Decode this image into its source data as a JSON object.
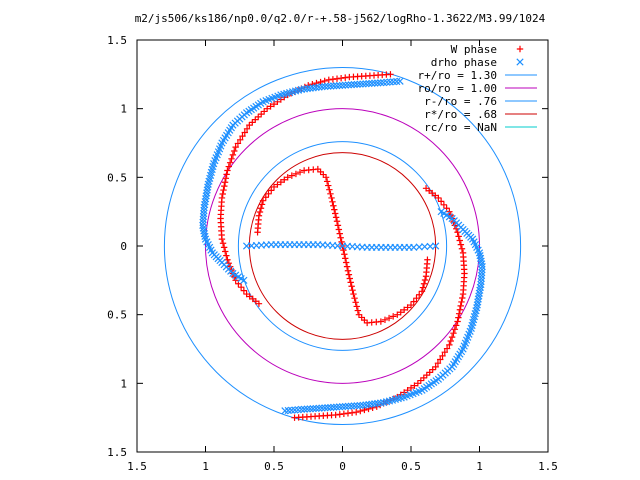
{
  "chart_data": {
    "type": "scatter",
    "title": "m2/js506/ks186/np0.0/q2.0/r-+.58-j562/logRho-1.3622/M3.99/1024",
    "xlabel": "",
    "ylabel": "",
    "xlim": [
      -1.5,
      1.5
    ],
    "ylim": [
      -1.5,
      1.5
    ],
    "grid": false,
    "legend_position": "top-right",
    "x_ticks": [
      {
        "value": -1.5,
        "label": "1.5"
      },
      {
        "value": -1.0,
        "label": "1"
      },
      {
        "value": -0.5,
        "label": "0.5"
      },
      {
        "value": 0.0,
        "label": "0"
      },
      {
        "value": 0.5,
        "label": "0.5"
      },
      {
        "value": 1.0,
        "label": "1"
      },
      {
        "value": 1.5,
        "label": "1.5"
      }
    ],
    "y_ticks": [
      {
        "value": -1.5,
        "label": "1.5"
      },
      {
        "value": -1.0,
        "label": "1"
      },
      {
        "value": -0.5,
        "label": "0.5"
      },
      {
        "value": 0.0,
        "label": "0"
      },
      {
        "value": 0.5,
        "label": "0.5"
      },
      {
        "value": 1.0,
        "label": "1"
      },
      {
        "value": 1.5,
        "label": "1.5"
      }
    ],
    "legend": [
      {
        "label": "W phase",
        "color": "#ff0000",
        "marker": "plus"
      },
      {
        "label": "drho phase",
        "color": "#1e90ff",
        "marker": "cross"
      },
      {
        "label": "r+/ro = 1.30",
        "color": "#1e90ff",
        "marker": "line"
      },
      {
        "label": "ro/ro = 1.00",
        "color": "#bb00bb",
        "marker": "line"
      },
      {
        "label": "r-/ro = .76",
        "color": "#1e90ff",
        "marker": "line"
      },
      {
        "label": "r*/ro = .68",
        "color": "#cc0000",
        "marker": "line"
      },
      {
        "label": "rc/ro = NaN",
        "color": "#00cccc",
        "marker": "line"
      }
    ],
    "circles": [
      {
        "name": "r+/ro",
        "radius": 1.3,
        "color": "#1e90ff"
      },
      {
        "name": "ro/ro",
        "radius": 1.0,
        "color": "#bb00bb"
      },
      {
        "name": "r-/ro",
        "radius": 0.76,
        "color": "#1e90ff"
      },
      {
        "name": "r*/ro",
        "radius": 0.68,
        "color": "#cc0000"
      }
    ],
    "series": [
      {
        "name": "W phase",
        "color": "#ff0000",
        "marker": "plus",
        "curves": [
          {
            "points": [
              [
                -0.62,
                0.1
              ],
              [
                -0.61,
                0.22
              ],
              [
                -0.58,
                0.33
              ],
              [
                -0.5,
                0.43
              ],
              [
                -0.4,
                0.5
              ],
              [
                -0.28,
                0.55
              ],
              [
                -0.18,
                0.56
              ],
              [
                -0.12,
                0.5
              ],
              [
                -0.08,
                0.35
              ],
              [
                -0.04,
                0.18
              ],
              [
                0.0,
                0.0
              ],
              [
                0.04,
                -0.18
              ],
              [
                0.08,
                -0.35
              ],
              [
                0.12,
                -0.5
              ],
              [
                0.18,
                -0.56
              ],
              [
                0.28,
                -0.55
              ],
              [
                0.4,
                -0.5
              ],
              [
                0.5,
                -0.43
              ],
              [
                0.58,
                -0.33
              ],
              [
                0.61,
                -0.22
              ],
              [
                0.62,
                -0.1
              ]
            ],
            "density": 4
          },
          {
            "points": [
              [
                0.61,
                0.42
              ],
              [
                0.7,
                0.35
              ],
              [
                0.78,
                0.25
              ],
              [
                0.84,
                0.1
              ],
              [
                0.88,
                -0.05
              ],
              [
                0.89,
                -0.2
              ],
              [
                0.88,
                -0.35
              ],
              [
                0.84,
                -0.55
              ],
              [
                0.78,
                -0.72
              ],
              [
                0.68,
                -0.88
              ],
              [
                0.55,
                -1.0
              ],
              [
                0.4,
                -1.1
              ],
              [
                0.25,
                -1.17
              ],
              [
                0.1,
                -1.21
              ],
              [
                -0.05,
                -1.23
              ],
              [
                -0.2,
                -1.24
              ],
              [
                -0.35,
                -1.25
              ]
            ],
            "density": 4
          },
          {
            "points": [
              [
                -0.61,
                -0.42
              ],
              [
                -0.7,
                -0.35
              ],
              [
                -0.78,
                -0.25
              ],
              [
                -0.84,
                -0.1
              ],
              [
                -0.88,
                0.05
              ],
              [
                -0.89,
                0.2
              ],
              [
                -0.88,
                0.35
              ],
              [
                -0.84,
                0.55
              ],
              [
                -0.78,
                0.72
              ],
              [
                -0.68,
                0.88
              ],
              [
                -0.55,
                1.0
              ],
              [
                -0.4,
                1.1
              ],
              [
                -0.25,
                1.17
              ],
              [
                -0.1,
                1.21
              ],
              [
                0.05,
                1.23
              ],
              [
                0.2,
                1.24
              ],
              [
                0.35,
                1.25
              ]
            ],
            "density": 4
          }
        ]
      },
      {
        "name": "drho phase",
        "color": "#1e90ff",
        "marker": "cross",
        "curves": [
          {
            "points": [
              [
                -0.7,
                0.0
              ],
              [
                -0.52,
                0.01
              ],
              [
                -0.35,
                0.01
              ],
              [
                -0.18,
                0.01
              ],
              [
                0.0,
                0.0
              ],
              [
                0.18,
                -0.01
              ],
              [
                0.35,
                -0.01
              ],
              [
                0.52,
                -0.01
              ],
              [
                0.68,
                0.0
              ]
            ],
            "density": 5
          },
          {
            "points": [
              [
                0.72,
                0.25
              ],
              [
                0.8,
                0.2
              ],
              [
                0.88,
                0.12
              ],
              [
                0.95,
                0.05
              ],
              [
                1.0,
                -0.05
              ],
              [
                1.02,
                -0.15
              ],
              [
                1.01,
                -0.28
              ],
              [
                0.98,
                -0.45
              ],
              [
                0.94,
                -0.6
              ],
              [
                0.88,
                -0.75
              ],
              [
                0.8,
                -0.88
              ],
              [
                0.7,
                -0.97
              ],
              [
                0.58,
                -1.05
              ],
              [
                0.45,
                -1.1
              ],
              [
                0.3,
                -1.14
              ],
              [
                0.15,
                -1.16
              ],
              [
                0.0,
                -1.17
              ],
              [
                -0.15,
                -1.18
              ],
              [
                -0.3,
                -1.19
              ],
              [
                -0.42,
                -1.2
              ]
            ],
            "density": 3
          },
          {
            "points": [
              [
                -0.72,
                -0.25
              ],
              [
                -0.8,
                -0.2
              ],
              [
                -0.88,
                -0.12
              ],
              [
                -0.95,
                -0.05
              ],
              [
                -1.0,
                0.05
              ],
              [
                -1.02,
                0.15
              ],
              [
                -1.01,
                0.28
              ],
              [
                -0.98,
                0.45
              ],
              [
                -0.94,
                0.6
              ],
              [
                -0.88,
                0.75
              ],
              [
                -0.8,
                0.88
              ],
              [
                -0.7,
                0.97
              ],
              [
                -0.58,
                1.05
              ],
              [
                -0.45,
                1.1
              ],
              [
                -0.3,
                1.14
              ],
              [
                -0.15,
                1.16
              ],
              [
                0.0,
                1.17
              ],
              [
                0.15,
                1.18
              ],
              [
                0.3,
                1.19
              ],
              [
                0.42,
                1.2
              ]
            ],
            "density": 3
          }
        ]
      }
    ]
  }
}
